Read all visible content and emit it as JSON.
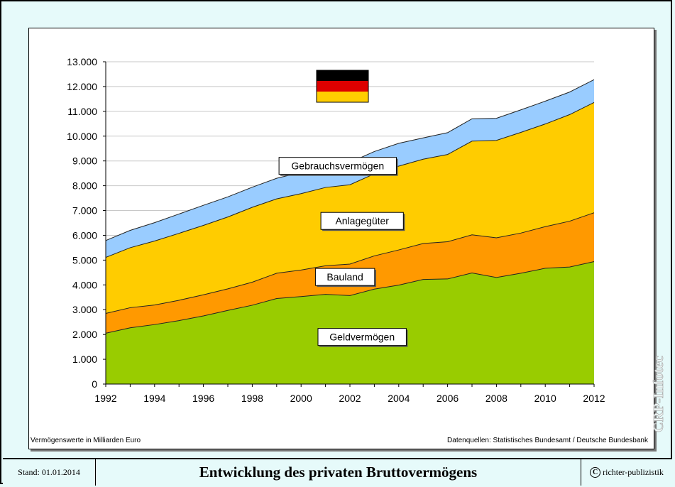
{
  "chart_data": {
    "type": "area",
    "stacked": true,
    "x": [
      1992,
      1993,
      1994,
      1995,
      1996,
      1997,
      1998,
      1999,
      2000,
      2001,
      2002,
      2003,
      2004,
      2005,
      2006,
      2007,
      2008,
      2009,
      2010,
      2011,
      2012
    ],
    "x_tick_labels": [
      "1992",
      "1994",
      "1996",
      "1998",
      "2000",
      "2002",
      "2004",
      "2006",
      "2008",
      "2010",
      "2012"
    ],
    "y_tick_labels": [
      "0",
      "1.000",
      "2.000",
      "3.000",
      "4.000",
      "5.000",
      "6.000",
      "7.000",
      "8.000",
      "9.000",
      "10.000",
      "11.000",
      "12.000",
      "13.000"
    ],
    "ylim": [
      0,
      13000
    ],
    "xlim": [
      1992,
      2012
    ],
    "grid": "horizontal",
    "series": [
      {
        "name": "Geldvermögen",
        "color": "#99cc00",
        "values": [
          2050,
          2270,
          2400,
          2560,
          2750,
          2970,
          3180,
          3450,
          3530,
          3620,
          3570,
          3830,
          3990,
          4220,
          4240,
          4480,
          4300,
          4470,
          4670,
          4720,
          4940
        ]
      },
      {
        "name": "Bauland",
        "color": "#ff9900",
        "values": [
          800,
          810,
          790,
          820,
          850,
          870,
          930,
          1020,
          1070,
          1150,
          1270,
          1340,
          1420,
          1450,
          1500,
          1540,
          1600,
          1620,
          1680,
          1850,
          1970
        ]
      },
      {
        "name": "Anlagegüter",
        "color": "#ffcc00",
        "values": [
          2260,
          2420,
          2580,
          2700,
          2800,
          2900,
          3020,
          3000,
          3080,
          3160,
          3200,
          3310,
          3380,
          3400,
          3520,
          3780,
          3930,
          4060,
          4140,
          4300,
          4450
        ]
      },
      {
        "name": "Gebrauchsvermögen",
        "color": "#99ccff",
        "values": [
          680,
          700,
          740,
          780,
          810,
          810,
          810,
          830,
          860,
          860,
          900,
          900,
          920,
          860,
          880,
          900,
          890,
          910,
          920,
          910,
          920
        ]
      }
    ],
    "label_positions": [
      "inside-band"
    ]
  },
  "notes": {
    "units": "Vermögenswerte in Milliarden Euro",
    "sources": "Datenquellen: Statistisches Bundesamt / Deutsche Bundesbank"
  },
  "footer": {
    "stand": "Stand: 01.01.2014",
    "title": "Entwicklung des privaten Bruttovermögens",
    "copyright_symbol": "C",
    "copyright": "richter-publizistik"
  },
  "watermark": "CRP-Infotec",
  "flag_colors": [
    "#000000",
    "#dd0000",
    "#ffce00"
  ]
}
